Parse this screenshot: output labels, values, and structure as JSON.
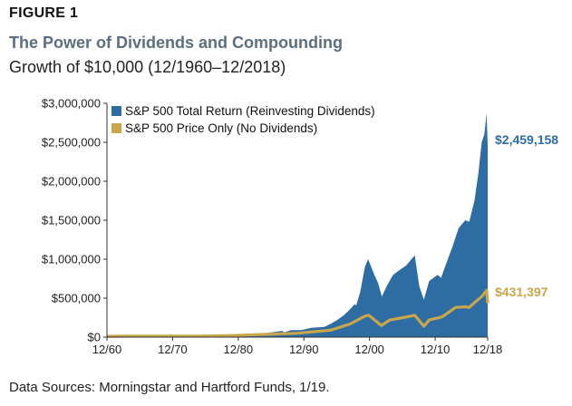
{
  "figure_label": "FIGURE 1",
  "title": "The Power of Dividends and Compounding",
  "subtitle": "Growth of $10,000 (12/1960–12/2018)",
  "source": "Data Sources: Morningstar and Hartford Funds, 1/19.",
  "colors": {
    "total_return": "#2e6da4",
    "price_only": "#c9a64a",
    "axis": "#333333"
  },
  "chart_data": {
    "type": "area",
    "title": "The Power of Dividends and Compounding",
    "subtitle": "Growth of $10,000 (12/1960–12/2018)",
    "xlabel": "",
    "ylabel": "",
    "xlim": [
      1960.917,
      2018.917
    ],
    "ylim": [
      0,
      3000000
    ],
    "grid": false,
    "legend_position": "top-left",
    "x_ticks": [
      1960.917,
      1970.917,
      1980.917,
      1990.917,
      2000.917,
      2010.917,
      2018.917
    ],
    "x_tick_labels": [
      "12/60",
      "12/70",
      "12/80",
      "12/90",
      "12/00",
      "12/10",
      "12/18"
    ],
    "y_ticks": [
      0,
      500000,
      1000000,
      1500000,
      2000000,
      2500000,
      3000000
    ],
    "y_tick_labels": [
      "$0",
      "$500,000",
      "$1,000,000",
      "$1,500,000",
      "$2,000,000",
      "$2,500,000",
      "$3,000,000"
    ],
    "series": [
      {
        "name": "S&P 500 Total Return (Reinvesting Dividends)",
        "end_label": "$2,459,158",
        "x": [
          1960.9,
          1962,
          1964,
          1966,
          1968,
          1970,
          1972,
          1973,
          1974.7,
          1976,
          1978,
          1980,
          1982,
          1984,
          1986,
          1987.6,
          1987.9,
          1989,
          1990.5,
          1992,
          1994,
          1995,
          1996,
          1997,
          1998,
          1998.6,
          1998.9,
          1999.5,
          2000.2,
          2000.7,
          2001.7,
          2002.2,
          2002.8,
          2003.5,
          2004.5,
          2005.5,
          2006.5,
          2007.8,
          2008.5,
          2009.2,
          2010,
          2011.3,
          2011.8,
          2012.5,
          2013.5,
          2014.5,
          2015.5,
          2016.1,
          2016.9,
          2017.5,
          2018.0,
          2018.4,
          2018.75,
          2018.917
        ],
        "values": [
          10000,
          11000,
          14000,
          15000,
          17000,
          16000,
          21000,
          18000,
          12000,
          18000,
          19000,
          25000,
          32000,
          40000,
          60000,
          80000,
          60000,
          90000,
          90000,
          120000,
          130000,
          170000,
          220000,
          280000,
          360000,
          420000,
          410000,
          580000,
          900000,
          1000000,
          790000,
          700000,
          520000,
          650000,
          800000,
          860000,
          920000,
          1050000,
          650000,
          480000,
          720000,
          800000,
          760000,
          920000,
          1150000,
          1400000,
          1500000,
          1480000,
          1750000,
          2100000,
          2500000,
          2600000,
          2870000,
          2459158
        ]
      },
      {
        "name": "S&P 500 Price Only (No Dividends)",
        "end_label": "$431,397",
        "x": [
          1960.9,
          1965,
          1970,
          1975,
          1980,
          1985,
          1990,
          1993,
          1995,
          1998,
          2000.2,
          2000.8,
          2002.7,
          2004,
          2006,
          2007.8,
          2009.2,
          2010,
          2012,
          2014,
          2015.5,
          2016.1,
          2017,
          2018.0,
          2018.75,
          2018.917
        ],
        "values": [
          10000,
          14000,
          14000,
          13000,
          21000,
          35000,
          50000,
          75000,
          90000,
          170000,
          270000,
          280000,
          150000,
          220000,
          250000,
          280000,
          140000,
          220000,
          260000,
          380000,
          390000,
          380000,
          450000,
          520000,
          600000,
          431397
        ]
      }
    ]
  }
}
